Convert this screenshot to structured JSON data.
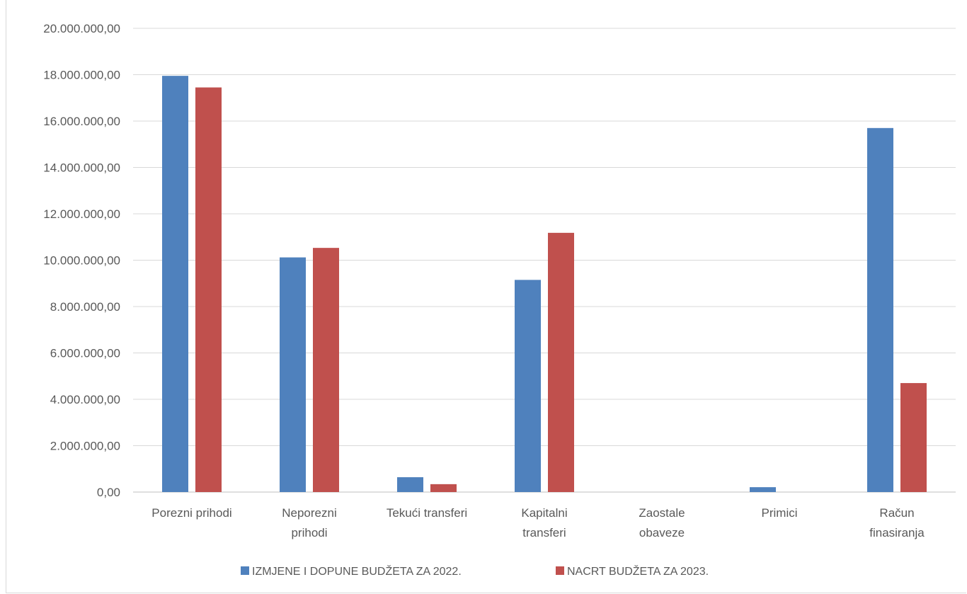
{
  "chart_data": {
    "type": "bar",
    "title": "",
    "categories": [
      [
        "Porezni prihodi"
      ],
      [
        "Neporezni",
        "prihodi"
      ],
      [
        "Tekući transferi"
      ],
      [
        "Kapitalni",
        "transferi"
      ],
      [
        "Zaostale",
        "obaveze"
      ],
      [
        "Primici"
      ],
      [
        "Račun",
        "finasiranja"
      ]
    ],
    "series": [
      {
        "name": "IZMJENE I DOPUNE BUDŽETA ZA 2022.",
        "color": "#4f81bd",
        "values": [
          17950000,
          10120000,
          640000,
          9150000,
          0,
          210000,
          15700000
        ]
      },
      {
        "name": "NACRT BUDŽETA ZA 2023.",
        "color": "#c0504d",
        "values": [
          17450000,
          10530000,
          340000,
          11180000,
          0,
          0,
          4700000
        ]
      }
    ],
    "ylim": [
      0,
      20000000
    ],
    "yticks": [
      "0,00",
      "2.000.000,00",
      "4.000.000,00",
      "6.000.000,00",
      "8.000.000,00",
      "10.000.000,00",
      "12.000.000,00",
      "14.000.000,00",
      "16.000.000,00",
      "18.000.000,00",
      "20.000.000,00"
    ],
    "grid": true,
    "legend_position": "bottom"
  }
}
